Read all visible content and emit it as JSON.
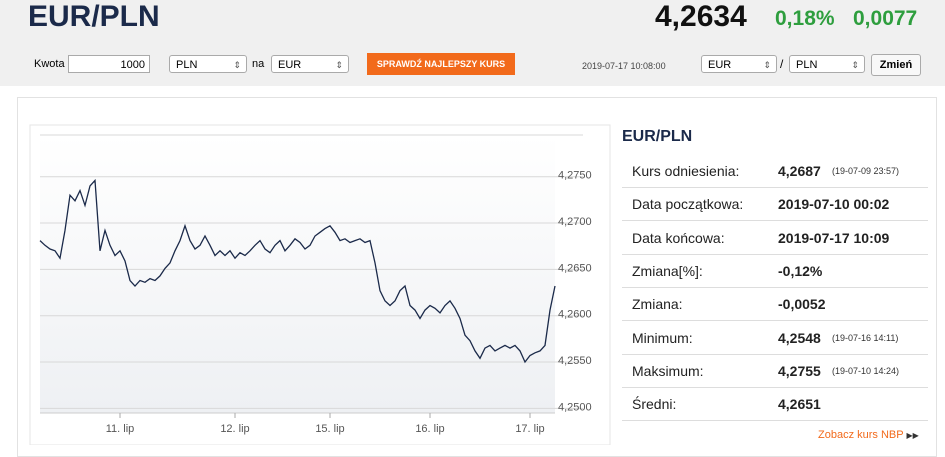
{
  "header": {
    "title": "EUR/PLN",
    "price": "4,2634",
    "change_pct": "0,18%",
    "change_abs": "0,0077"
  },
  "converter": {
    "amount_label": "Kwota",
    "amount": "1000",
    "from": "PLN",
    "to_label": "na",
    "to": "EUR",
    "button": "SPRAWDŹ NAJLEPSZY KURS",
    "timestamp": "2019-07-17 10:08:00",
    "pair_from": "EUR",
    "separator": "/",
    "pair_to": "PLN",
    "change_button": "Zmień"
  },
  "stats": {
    "title": "EUR/PLN",
    "rows": [
      {
        "label": "Kurs odniesienia:",
        "value": "4,2687",
        "note": "(19-07-09 23:57)"
      },
      {
        "label": "Data początkowa:",
        "value": "2019-07-10 00:02"
      },
      {
        "label": "Data końcowa:",
        "value": "2019-07-17 10:09"
      },
      {
        "label": "Zmiana[%]:",
        "value": "-0,12%"
      },
      {
        "label": "Zmiana:",
        "value": "-0,0052"
      },
      {
        "label": "Minimum:",
        "value": "4,2548",
        "note": "(19-07-16 14:11)"
      },
      {
        "label": "Maksimum:",
        "value": "4,2755",
        "note": "(19-07-10 14:24)"
      },
      {
        "label": "Średni:",
        "value": "4,2651"
      }
    ],
    "link": "Zobacz kurs NBP"
  },
  "chart_data": {
    "type": "line",
    "color": "#1b2a4a",
    "grid": true,
    "values": [
      4.2681,
      4.2676,
      4.2672,
      4.267,
      4.2662,
      4.2692,
      4.273,
      4.2724,
      4.2735,
      4.2719,
      4.274,
      4.2746,
      4.267,
      4.2692,
      4.2676,
      4.2665,
      4.267,
      4.2659,
      4.2638,
      4.2632,
      4.2638,
      4.2636,
      4.264,
      4.2638,
      4.2643,
      4.2651,
      4.2657,
      4.267,
      4.2681,
      4.2697,
      4.2681,
      4.2672,
      4.2676,
      4.2686,
      4.2676,
      4.2665,
      4.267,
      4.2665,
      4.267,
      4.2662,
      4.2668,
      4.2665,
      4.267,
      4.2676,
      4.2681,
      4.2672,
      4.2668,
      4.2676,
      4.2681,
      4.267,
      4.2676,
      4.2683,
      4.2679,
      4.2672,
      4.2676,
      4.2686,
      4.269,
      4.2694,
      4.2697,
      4.269,
      4.2681,
      4.2683,
      4.2679,
      4.2681,
      4.2683,
      4.2679,
      4.2681,
      4.2657,
      4.2627,
      4.2616,
      4.2611,
      4.2616,
      4.2627,
      4.2632,
      4.2611,
      4.2606,
      4.2597,
      4.2606,
      4.2611,
      4.2608,
      4.2603,
      4.2611,
      4.2616,
      4.2608,
      4.2597,
      4.2579,
      4.2573,
      4.2562,
      4.2554,
      4.2565,
      4.2568,
      4.2562,
      4.2565,
      4.2568,
      4.2565,
      4.2568,
      4.2562,
      4.255,
      4.2557,
      4.256,
      4.2562,
      4.2568,
      4.2606,
      4.2632
    ],
    "xlim": [
      0,
      103
    ],
    "xticks": [
      {
        "value": 16,
        "label": "11. lip"
      },
      {
        "value": 39,
        "label": "12. lip"
      },
      {
        "value": 58,
        "label": "15. lip"
      },
      {
        "value": 78,
        "label": "16. lip"
      },
      {
        "value": 98,
        "label": "17. lip"
      }
    ],
    "ylim": [
      4.2495,
      4.2795
    ],
    "yticks": [
      {
        "value": 4.25,
        "label": "4,2500"
      },
      {
        "value": 4.255,
        "label": "4,2550"
      },
      {
        "value": 4.26,
        "label": "4,2600"
      },
      {
        "value": 4.265,
        "label": "4,2650"
      },
      {
        "value": 4.27,
        "label": "4,2700"
      },
      {
        "value": 4.275,
        "label": "4,2750"
      }
    ]
  }
}
